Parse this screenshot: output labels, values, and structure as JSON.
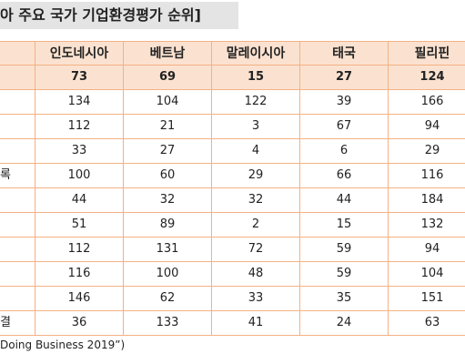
{
  "title": "아 주요 국가 기업환경평가 순위]",
  "table": {
    "header": [
      "인도네시아",
      "베트남",
      "말레이시아",
      "태국",
      "필리핀"
    ],
    "rows": [
      {
        "label": null,
        "values": [
          73,
          69,
          15,
          27,
          124
        ]
      },
      {
        "label": null,
        "values": [
          134,
          104,
          122,
          39,
          166
        ]
      },
      {
        "label": null,
        "values": [
          112,
          21,
          3,
          67,
          94
        ]
      },
      {
        "label": null,
        "values": [
          33,
          27,
          4,
          6,
          29
        ]
      },
      {
        "label": "록",
        "values": [
          100,
          60,
          29,
          66,
          116
        ]
      },
      {
        "label": null,
        "values": [
          44,
          32,
          32,
          44,
          184
        ]
      },
      {
        "label": null,
        "values": [
          51,
          89,
          2,
          15,
          132
        ]
      },
      {
        "label": null,
        "values": [
          112,
          131,
          72,
          59,
          94
        ]
      },
      {
        "label": null,
        "values": [
          116,
          100,
          48,
          59,
          104
        ]
      },
      {
        "label": null,
        "values": [
          146,
          62,
          33,
          35,
          151
        ]
      },
      {
        "label": "결",
        "values": [
          36,
          133,
          41,
          24,
          63
        ]
      }
    ]
  },
  "footer": "Doing Business 2019”)"
}
